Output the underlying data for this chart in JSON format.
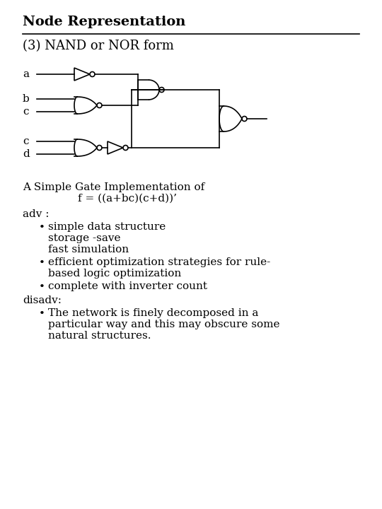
{
  "title": "Node Representation",
  "subtitle": "(3) NAND or NOR form",
  "bg_color": "#ffffff",
  "text_color": "#000000",
  "title_fontsize": 14,
  "subtitle_fontsize": 13,
  "body_fontsize": 11,
  "description_line1": "A Simple Gate Implementation of",
  "description_line2": "f = ((a+bc)(c+d))’",
  "adv_label": "adv :",
  "adv_bullets": [
    "simple data structure\nstorage -save\nfast simulation",
    "efficient optimization strategies for rule-\n based logic optimization",
    "complete with inverter count"
  ],
  "disadv_label": "disadv:",
  "disadv_bullets": [
    "The network is finely decomposed in a\nparticular way and this may obscure some\nnatural structures."
  ]
}
